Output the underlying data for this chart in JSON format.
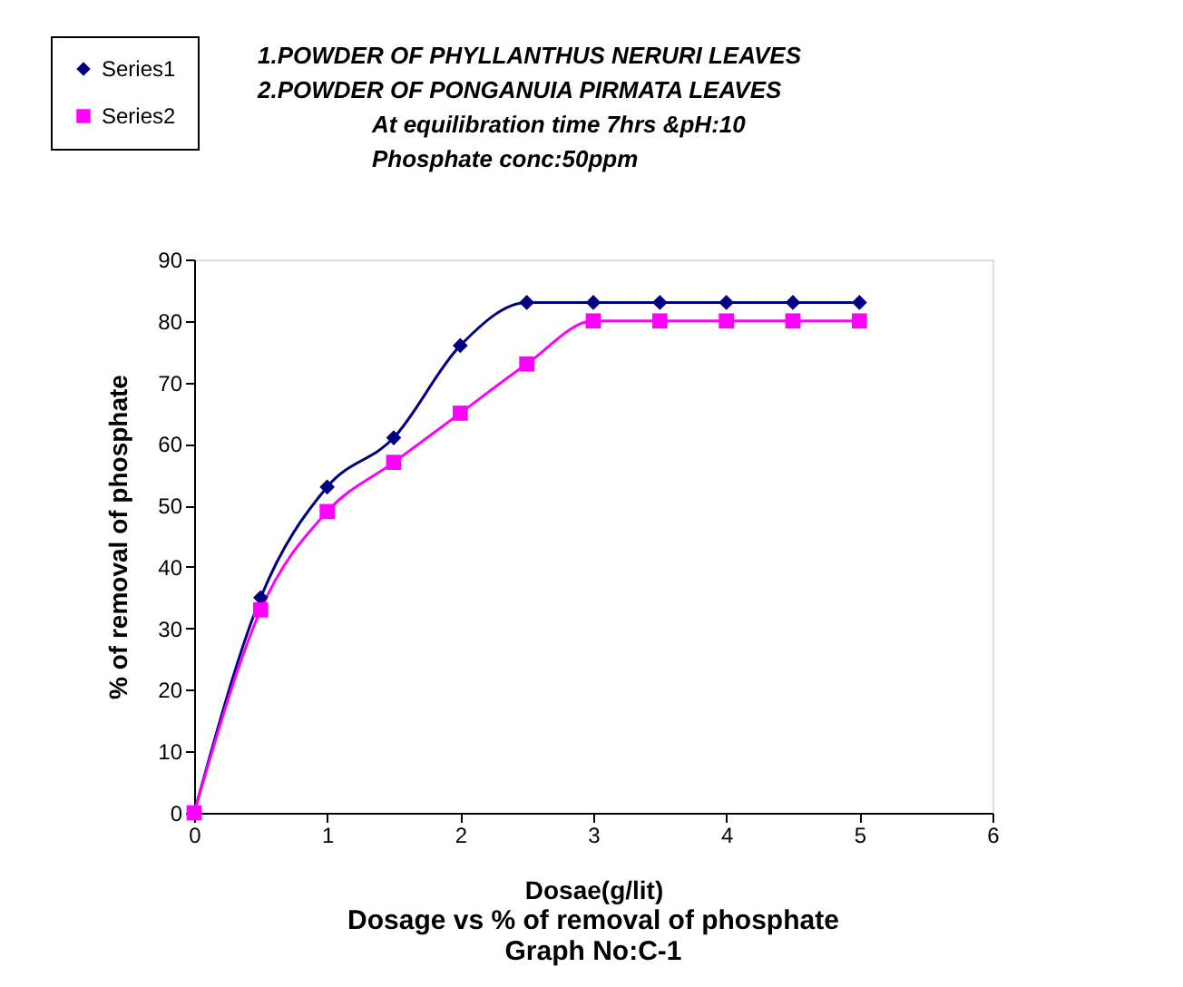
{
  "chart_data": {
    "type": "line",
    "title": "Dosage vs % of removal of phosphate",
    "subtitle": "Graph No:C-1",
    "xlabel": "Dosae(g/lit)",
    "ylabel": "% of removal of phosphate",
    "annotations": [
      "1.POWDER OF  PHYLLANTHUS NERURI  LEAVES",
      "2.POWDER  OF PONGANUIA PIRMATA  LEAVES",
      "At equilibration time 7hrs &pH:10",
      "Phosphate conc:50ppm"
    ],
    "x": [
      0,
      0.5,
      1,
      1.5,
      2,
      2.5,
      3,
      3.5,
      4,
      4.5,
      5
    ],
    "series": [
      {
        "name": "Series1",
        "color": "#000080",
        "marker": "diamond",
        "values": [
          0,
          35,
          53,
          61,
          76,
          83,
          83,
          83,
          83,
          83,
          83
        ]
      },
      {
        "name": "Series2",
        "color": "#ff00ff",
        "marker": "square",
        "values": [
          0,
          33,
          49,
          57,
          65,
          73,
          80,
          80,
          80,
          80,
          80
        ]
      }
    ],
    "xlim": [
      0,
      6
    ],
    "xticks": [
      0,
      1,
      2,
      3,
      4,
      5,
      6
    ],
    "ylim": [
      0,
      90
    ],
    "yticks": [
      0,
      10,
      20,
      30,
      40,
      50,
      60,
      70,
      80,
      90
    ],
    "grid": false,
    "legend": "top left"
  }
}
